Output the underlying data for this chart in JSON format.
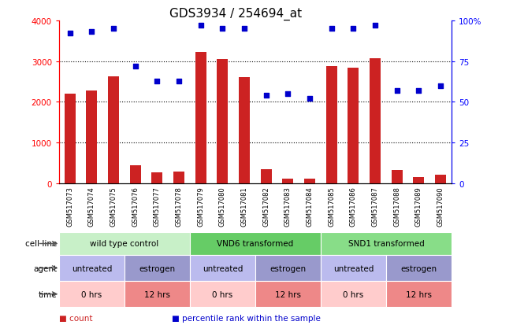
{
  "title": "GDS3934 / 254694_at",
  "samples": [
    "GSM517073",
    "GSM517074",
    "GSM517075",
    "GSM517076",
    "GSM517077",
    "GSM517078",
    "GSM517079",
    "GSM517080",
    "GSM517081",
    "GSM517082",
    "GSM517083",
    "GSM517084",
    "GSM517085",
    "GSM517086",
    "GSM517087",
    "GSM517088",
    "GSM517089",
    "GSM517090"
  ],
  "counts": [
    2200,
    2270,
    2620,
    450,
    270,
    290,
    3230,
    3050,
    2610,
    340,
    120,
    110,
    2880,
    2840,
    3070,
    330,
    160,
    215
  ],
  "percentiles": [
    92,
    93,
    95,
    72,
    63,
    63,
    97,
    95,
    95,
    54,
    55,
    52,
    95,
    95,
    97,
    57,
    57,
    60
  ],
  "bar_color": "#cc2222",
  "dot_color": "#0000cc",
  "ylim_left": [
    0,
    4000
  ],
  "ylim_right": [
    0,
    100
  ],
  "yticks_left": [
    0,
    1000,
    2000,
    3000,
    4000
  ],
  "ytick_labels_left": [
    "0",
    "1000",
    "2000",
    "3000",
    "4000"
  ],
  "yticks_right": [
    0,
    25,
    50,
    75,
    100
  ],
  "ytick_labels_right": [
    "0",
    "25",
    "50",
    "75",
    "100%"
  ],
  "cell_line_groups": [
    {
      "label": "wild type control",
      "start": 0,
      "end": 6,
      "color": "#c8f0c8"
    },
    {
      "label": "VND6 transformed",
      "start": 6,
      "end": 12,
      "color": "#66cc66"
    },
    {
      "label": "SND1 transformed",
      "start": 12,
      "end": 18,
      "color": "#88dd88"
    }
  ],
  "agent_groups": [
    {
      "label": "untreated",
      "start": 0,
      "end": 3,
      "color": "#bbbbee"
    },
    {
      "label": "estrogen",
      "start": 3,
      "end": 6,
      "color": "#9999cc"
    },
    {
      "label": "untreated",
      "start": 6,
      "end": 9,
      "color": "#bbbbee"
    },
    {
      "label": "estrogen",
      "start": 9,
      "end": 12,
      "color": "#9999cc"
    },
    {
      "label": "untreated",
      "start": 12,
      "end": 15,
      "color": "#bbbbee"
    },
    {
      "label": "estrogen",
      "start": 15,
      "end": 18,
      "color": "#9999cc"
    }
  ],
  "time_groups": [
    {
      "label": "0 hrs",
      "start": 0,
      "end": 3,
      "color": "#ffcccc"
    },
    {
      "label": "12 hrs",
      "start": 3,
      "end": 6,
      "color": "#ee8888"
    },
    {
      "label": "0 hrs",
      "start": 6,
      "end": 9,
      "color": "#ffcccc"
    },
    {
      "label": "12 hrs",
      "start": 9,
      "end": 12,
      "color": "#ee8888"
    },
    {
      "label": "0 hrs",
      "start": 12,
      "end": 15,
      "color": "#ffcccc"
    },
    {
      "label": "12 hrs",
      "start": 15,
      "end": 18,
      "color": "#ee8888"
    }
  ],
  "row_labels": [
    "cell line",
    "agent",
    "time"
  ],
  "legend_items": [
    {
      "color": "#cc2222",
      "label": "count"
    },
    {
      "color": "#0000cc",
      "label": "percentile rank within the sample"
    }
  ],
  "background_color": "#ffffff",
  "title_fontsize": 11,
  "tick_fontsize": 7.5,
  "bar_width": 0.5,
  "xtick_bg_color": "#dddddd"
}
